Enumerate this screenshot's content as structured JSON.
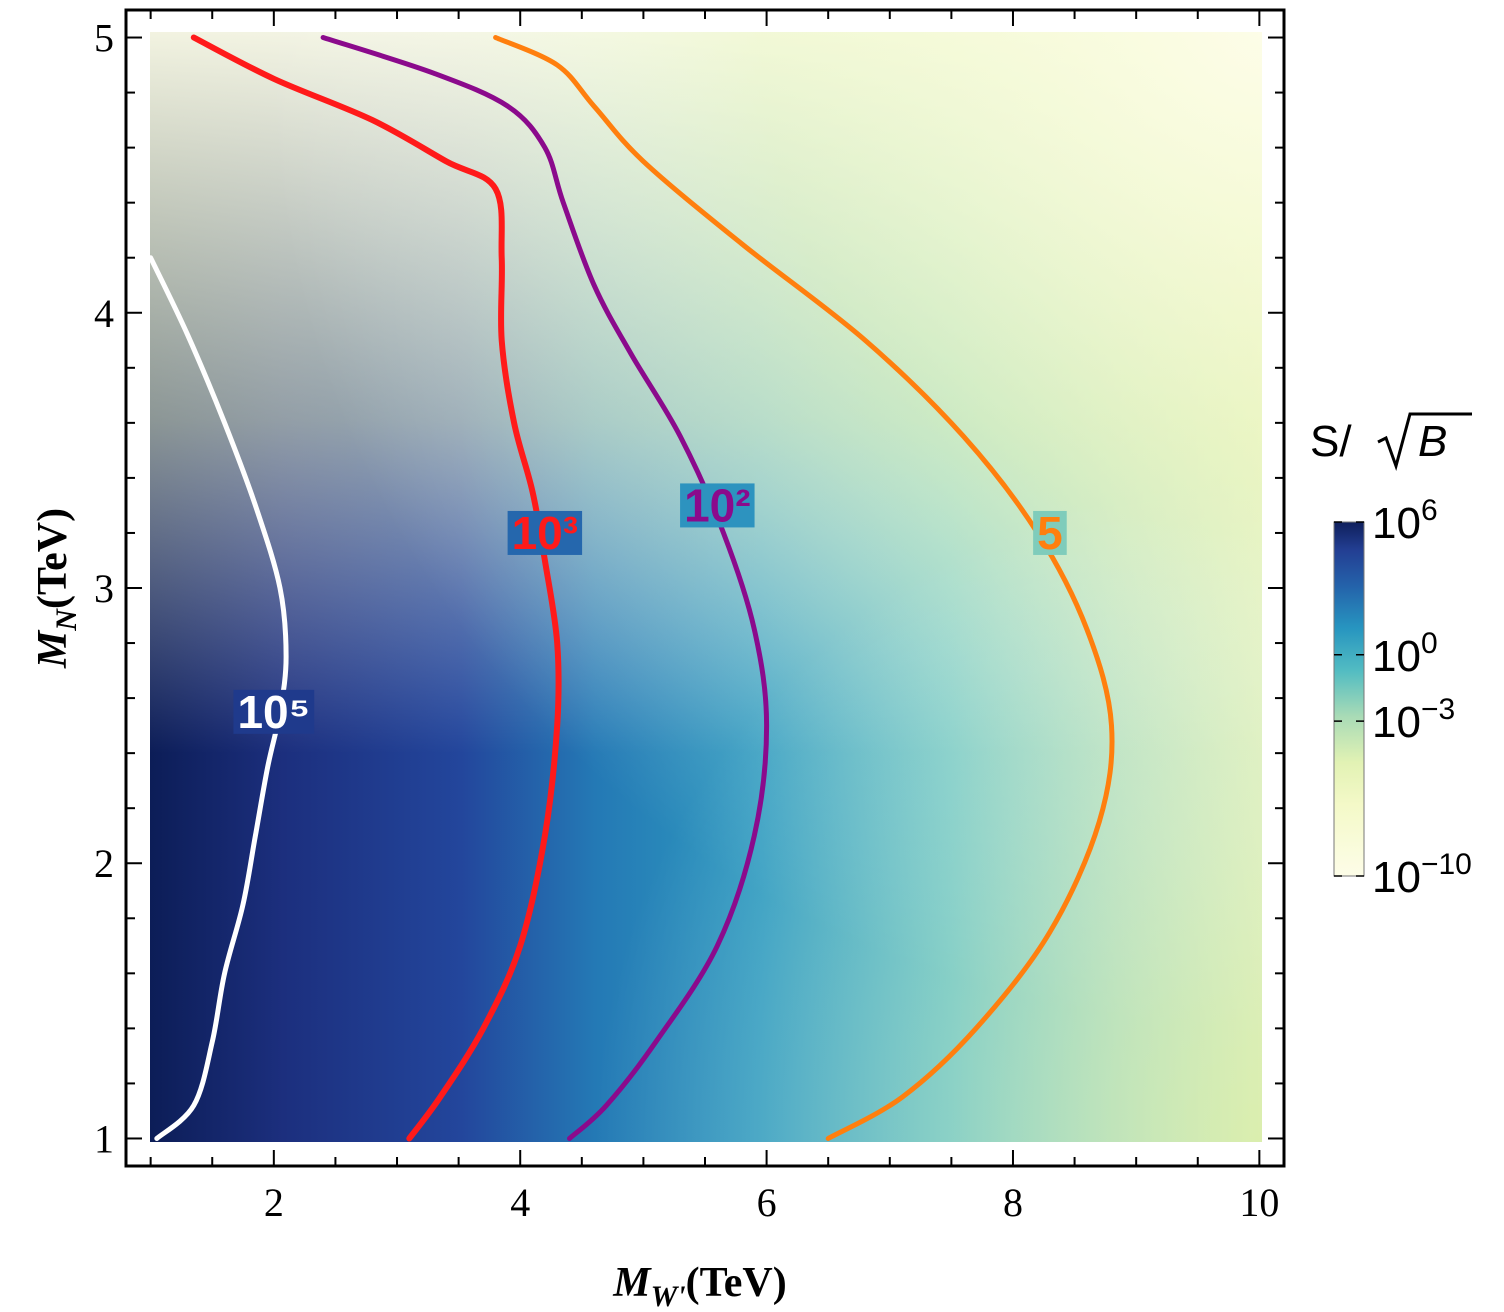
{
  "chart_data": {
    "type": "heatmap",
    "title": "",
    "xlabel": {
      "main": "M",
      "sub": "W'",
      "unit": "(TeV)"
    },
    "ylabel": {
      "main": "M",
      "sub": "N",
      "unit": "(TeV)"
    },
    "xlim": [
      0.8,
      10.2
    ],
    "ylim": [
      0.9,
      5.1
    ],
    "data_extent": {
      "x": [
        1,
        10
      ],
      "y": [
        1,
        5
      ]
    },
    "x_ticks": [
      2,
      4,
      6,
      8,
      10
    ],
    "y_ticks": [
      1,
      2,
      3,
      4,
      5
    ],
    "x_tick_labels": [
      "2",
      "4",
      "6",
      "8",
      "10"
    ],
    "y_tick_labels": [
      "1",
      "2",
      "3",
      "4",
      "5"
    ],
    "colorbar": {
      "title": "S/ √B",
      "title_text": "S/",
      "title_sqrt": "B",
      "scale": "log",
      "ticks": [
        {
          "base": "10",
          "exp": "6",
          "value": 6
        },
        {
          "base": "10",
          "exp": "0",
          "value": 0
        },
        {
          "base": "10",
          "exp": "−3",
          "value": -3
        },
        {
          "base": "10",
          "exp": "−10",
          "value": -10
        }
      ],
      "colors": [
        "#fdfde6",
        "#edf6b4",
        "#c5e7b4",
        "#7fccbb",
        "#41b5c4",
        "#2b8fbf",
        "#2459a6",
        "#253494",
        "#0c1d57"
      ]
    },
    "contours": [
      {
        "label": "10⁵",
        "level": 100000,
        "color": "#ffffff",
        "label_at": [
          2.0,
          2.55
        ],
        "points": [
          [
            1.0,
            4.2
          ],
          [
            1.3,
            3.92
          ],
          [
            1.6,
            3.6
          ],
          [
            1.85,
            3.3
          ],
          [
            2.05,
            3.0
          ],
          [
            2.1,
            2.75
          ],
          [
            2.05,
            2.55
          ],
          [
            1.95,
            2.35
          ],
          [
            1.85,
            2.1
          ],
          [
            1.75,
            1.85
          ],
          [
            1.6,
            1.6
          ],
          [
            1.5,
            1.35
          ],
          [
            1.35,
            1.12
          ],
          [
            1.05,
            1.0
          ]
        ]
      },
      {
        "label": "10³",
        "level": 1000,
        "color": "#ff1a1a",
        "label_at": [
          4.2,
          3.2
        ],
        "points": [
          [
            1.35,
            5.0
          ],
          [
            2.0,
            4.85
          ],
          [
            2.8,
            4.7
          ],
          [
            3.4,
            4.55
          ],
          [
            3.8,
            4.45
          ],
          [
            3.85,
            4.2
          ],
          [
            3.85,
            3.9
          ],
          [
            3.95,
            3.6
          ],
          [
            4.1,
            3.35
          ],
          [
            4.2,
            3.1
          ],
          [
            4.3,
            2.8
          ],
          [
            4.3,
            2.5
          ],
          [
            4.2,
            2.1
          ],
          [
            4.0,
            1.7
          ],
          [
            3.7,
            1.4
          ],
          [
            3.35,
            1.15
          ],
          [
            3.1,
            1.0
          ]
        ]
      },
      {
        "label": "10²",
        "level": 100,
        "color": "#8b0a8c",
        "label_at": [
          5.6,
          3.3
        ],
        "points": [
          [
            2.4,
            5.0
          ],
          [
            3.3,
            4.87
          ],
          [
            3.9,
            4.75
          ],
          [
            4.2,
            4.6
          ],
          [
            4.35,
            4.4
          ],
          [
            4.6,
            4.1
          ],
          [
            4.9,
            3.85
          ],
          [
            5.3,
            3.55
          ],
          [
            5.65,
            3.2
          ],
          [
            5.9,
            2.85
          ],
          [
            6.0,
            2.5
          ],
          [
            5.9,
            2.1
          ],
          [
            5.6,
            1.7
          ],
          [
            5.1,
            1.35
          ],
          [
            4.7,
            1.12
          ],
          [
            4.4,
            1.0
          ]
        ]
      },
      {
        "label": "5",
        "level": 5,
        "color": "#ff7f0e",
        "label_at": [
          8.3,
          3.2
        ],
        "points": [
          [
            3.8,
            5.0
          ],
          [
            4.3,
            4.9
          ],
          [
            4.6,
            4.75
          ],
          [
            5.0,
            4.55
          ],
          [
            5.8,
            4.25
          ],
          [
            6.8,
            3.9
          ],
          [
            7.6,
            3.55
          ],
          [
            8.2,
            3.2
          ],
          [
            8.6,
            2.85
          ],
          [
            8.8,
            2.5
          ],
          [
            8.7,
            2.15
          ],
          [
            8.3,
            1.75
          ],
          [
            7.7,
            1.4
          ],
          [
            7.1,
            1.15
          ],
          [
            6.5,
            1.0
          ]
        ]
      }
    ]
  }
}
